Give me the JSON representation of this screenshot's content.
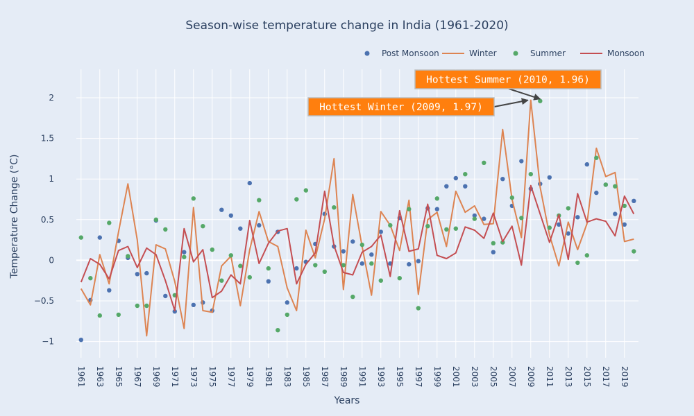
{
  "chart_data": {
    "type": "line",
    "title": "Season-wise temperature change in India (1961-2020)",
    "xlabel": "Years",
    "ylabel": "Temperature Change (°C)",
    "xlim": [
      1960.5,
      2020.5
    ],
    "ylim": [
      -1.2,
      2.35
    ],
    "x_ticks": [
      1961,
      1963,
      1965,
      1967,
      1969,
      1971,
      1973,
      1975,
      1977,
      1979,
      1981,
      1983,
      1985,
      1987,
      1989,
      1991,
      1993,
      1995,
      1997,
      1999,
      2001,
      2003,
      2005,
      2007,
      2009,
      2011,
      2013,
      2015,
      2017,
      2019
    ],
    "y_ticks": [
      -1,
      -0.5,
      0,
      0.5,
      1,
      1.5,
      2
    ],
    "y_tick_labels": [
      "−1",
      "−0.5",
      "0",
      "0.5",
      "1",
      "1.5",
      "2"
    ],
    "grid": true,
    "legend_position": "top-right",
    "x": [
      1961,
      1962,
      1963,
      1964,
      1965,
      1966,
      1967,
      1968,
      1969,
      1970,
      1971,
      1972,
      1973,
      1974,
      1975,
      1976,
      1977,
      1978,
      1979,
      1980,
      1981,
      1982,
      1983,
      1984,
      1985,
      1986,
      1987,
      1988,
      1989,
      1990,
      1991,
      1992,
      1993,
      1994,
      1995,
      1996,
      1997,
      1998,
      1999,
      2000,
      2001,
      2002,
      2003,
      2004,
      2005,
      2006,
      2007,
      2008,
      2009,
      2010,
      2011,
      2012,
      2013,
      2014,
      2015,
      2016,
      2017,
      2018,
      2019,
      2020
    ],
    "series": [
      {
        "name": "Post Monsoon",
        "mode": "markers",
        "color": "#4c72b0",
        "values": [
          -0.98,
          -0.49,
          0.28,
          -0.37,
          0.24,
          0.03,
          -0.17,
          -0.16,
          0.49,
          -0.44,
          -0.63,
          0.1,
          -0.55,
          -0.52,
          -0.62,
          0.62,
          0.55,
          0.39,
          0.95,
          0.43,
          -0.26,
          0.35,
          -0.52,
          -0.1,
          -0.02,
          0.2,
          0.57,
          0.17,
          0.11,
          0.23,
          -0.04,
          0.07,
          0.35,
          -0.04,
          0.52,
          -0.05,
          -0.01,
          0.64,
          0.63,
          0.91,
          1.01,
          0.91,
          0.55,
          0.51,
          0.1,
          1.0,
          0.67,
          1.22,
          0.88,
          0.94,
          1.02,
          0.44,
          0.33,
          0.53,
          1.18,
          0.83,
          0.93,
          0.57,
          0.44,
          0.73
        ]
      },
      {
        "name": "Winter",
        "mode": "lines",
        "color": "#dd8452",
        "values": [
          -0.35,
          -0.55,
          0.07,
          -0.29,
          0.35,
          0.94,
          0.25,
          -0.93,
          0.19,
          0.14,
          -0.26,
          -0.84,
          0.65,
          -0.62,
          -0.64,
          -0.07,
          0.05,
          -0.56,
          0.13,
          0.6,
          0.23,
          0.17,
          -0.34,
          -0.62,
          0.37,
          0.03,
          0.51,
          1.25,
          -0.36,
          0.81,
          0.17,
          -0.43,
          0.6,
          0.43,
          0.12,
          0.74,
          -0.42,
          0.5,
          0.59,
          0.17,
          0.85,
          0.59,
          0.67,
          0.44,
          0.45,
          1.61,
          0.75,
          0.28,
          1.97,
          0.9,
          0.31,
          -0.07,
          0.47,
          0.13,
          0.45,
          1.38,
          1.03,
          1.08,
          0.23,
          0.26
        ]
      },
      {
        "name": "Summer",
        "mode": "markers",
        "color": "#55a868",
        "values": [
          0.28,
          -0.22,
          -0.68,
          0.46,
          -0.67,
          0.05,
          -0.56,
          -0.56,
          0.5,
          0.38,
          -0.43,
          0.04,
          0.76,
          0.42,
          0.13,
          -0.25,
          0.06,
          -0.07,
          -0.21,
          0.74,
          -0.1,
          -0.86,
          -0.67,
          0.75,
          0.86,
          -0.06,
          -0.14,
          0.65,
          -0.06,
          -0.45,
          0.19,
          -0.04,
          -0.25,
          0.43,
          -0.22,
          0.63,
          -0.59,
          0.42,
          0.76,
          0.38,
          0.39,
          1.06,
          0.51,
          1.2,
          0.21,
          0.22,
          0.77,
          0.52,
          1.06,
          1.96,
          0.4,
          0.55,
          0.64,
          -0.03,
          0.06,
          1.26,
          0.93,
          0.91,
          0.67,
          0.11
        ]
      },
      {
        "name": "Monsoon",
        "mode": "lines",
        "color": "#c44e52",
        "values": [
          -0.27,
          0.02,
          -0.05,
          -0.23,
          0.12,
          0.17,
          -0.09,
          0.15,
          0.07,
          -0.25,
          -0.62,
          0.39,
          -0.02,
          0.13,
          -0.46,
          -0.38,
          -0.18,
          -0.29,
          0.49,
          -0.04,
          0.21,
          0.36,
          0.39,
          -0.29,
          -0.05,
          0.09,
          0.85,
          0.18,
          -0.15,
          -0.18,
          0.1,
          0.17,
          0.31,
          -0.2,
          0.61,
          0.11,
          0.14,
          0.69,
          0.06,
          0.02,
          0.09,
          0.41,
          0.37,
          0.27,
          0.58,
          0.23,
          0.42,
          -0.06,
          0.92,
          0.57,
          0.22,
          0.56,
          0.01,
          0.82,
          0.47,
          0.51,
          0.48,
          0.3,
          0.79,
          0.57
        ]
      }
    ],
    "annotations": [
      {
        "text": "Hottest Summer (2010, 1.96)",
        "x": 2010,
        "y": 1.96,
        "bg_color": "#ff7f0e",
        "text_color": "#ffffff"
      },
      {
        "text": "Hottest Winter (2009, 1.97)",
        "x": 2009,
        "y": 1.97,
        "bg_color": "#ff7f0e",
        "text_color": "#ffffff"
      }
    ]
  }
}
